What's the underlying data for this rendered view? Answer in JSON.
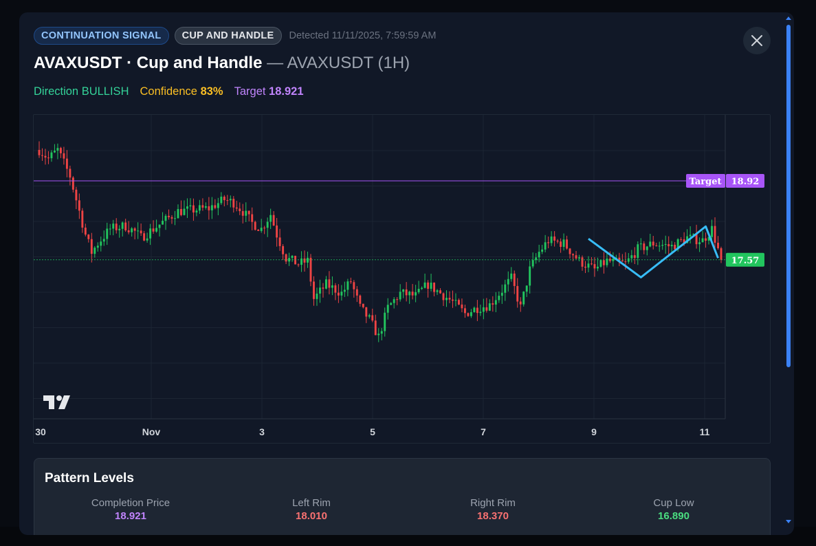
{
  "modal": {
    "badges": [
      "CONTINUATION SIGNAL",
      "CUP AND HANDLE"
    ],
    "detected": "Detected 11/11/2025, 7:59:59 AM",
    "title_main": "AVAXUSDT · Cup and Handle",
    "title_sub": " — AVAXUSDT (1H)",
    "direction_label": "Direction",
    "direction_value": "BULLISH",
    "confidence_label": "Confidence",
    "confidence_value": "83%",
    "target_label": "Target",
    "target_value": "18.921",
    "close_icon": "close-icon"
  },
  "chart_data": {
    "type": "candlestick",
    "symbol": "AVAXUSDT",
    "interval": "1H",
    "x_ticks": [
      "30",
      "Nov",
      "3",
      "5",
      "7",
      "9",
      "11"
    ],
    "price_labels": {
      "target_tag": "Target",
      "target_price": "18.92",
      "last_price": "17.57"
    },
    "target_price": 18.92,
    "last_price": 17.57,
    "ylim": [
      14.85,
      20.05
    ],
    "colors": {
      "up": "#22c55e",
      "down": "#ef4444",
      "target_line": "#a855f7",
      "last_line": "#22c55e",
      "pattern": "#38bdf8"
    },
    "price_path_knots": [
      [
        0,
        19.45
      ],
      [
        3,
        19.3
      ],
      [
        6,
        19.45
      ],
      [
        10,
        19.0
      ],
      [
        13,
        18.4
      ],
      [
        15,
        18.0
      ],
      [
        17,
        17.7
      ],
      [
        19,
        17.85
      ],
      [
        23,
        18.1
      ],
      [
        28,
        18.15
      ],
      [
        31,
        18.05
      ],
      [
        33,
        17.95
      ],
      [
        37,
        18.1
      ],
      [
        45,
        18.4
      ],
      [
        55,
        18.45
      ],
      [
        60,
        18.6
      ],
      [
        63,
        18.55
      ],
      [
        66,
        18.4
      ],
      [
        69,
        18.2
      ],
      [
        72,
        18.1
      ],
      [
        75,
        18.35
      ],
      [
        77,
        18.0
      ],
      [
        80,
        17.6
      ],
      [
        84,
        17.5
      ],
      [
        87,
        17.55
      ],
      [
        89,
        16.9
      ],
      [
        93,
        17.15
      ],
      [
        98,
        17.0
      ],
      [
        101,
        17.2
      ],
      [
        104,
        16.75
      ],
      [
        107,
        16.55
      ],
      [
        110,
        16.25
      ],
      [
        113,
        16.75
      ],
      [
        117,
        17.0
      ],
      [
        122,
        16.95
      ],
      [
        126,
        17.15
      ],
      [
        130,
        17.0
      ],
      [
        134,
        16.85
      ],
      [
        138,
        16.65
      ],
      [
        142,
        16.75
      ],
      [
        146,
        16.8
      ],
      [
        150,
        17.05
      ],
      [
        153,
        17.25
      ],
      [
        156,
        16.75
      ],
      [
        159,
        17.4
      ],
      [
        162,
        17.7
      ],
      [
        165,
        17.9
      ],
      [
        170,
        17.85
      ],
      [
        175,
        17.55
      ],
      [
        180,
        17.4
      ],
      [
        184,
        17.55
      ],
      [
        190,
        17.5
      ],
      [
        194,
        17.75
      ],
      [
        199,
        17.85
      ],
      [
        205,
        17.8
      ],
      [
        210,
        17.95
      ],
      [
        215,
        17.9
      ],
      [
        218,
        18.1
      ],
      [
        221,
        17.57
      ]
    ],
    "pattern_points": [
      [
        178,
        17.93
      ],
      [
        195,
        17.27
      ],
      [
        216,
        18.14
      ],
      [
        220,
        17.6
      ]
    ],
    "candle_count": 222
  }
}
